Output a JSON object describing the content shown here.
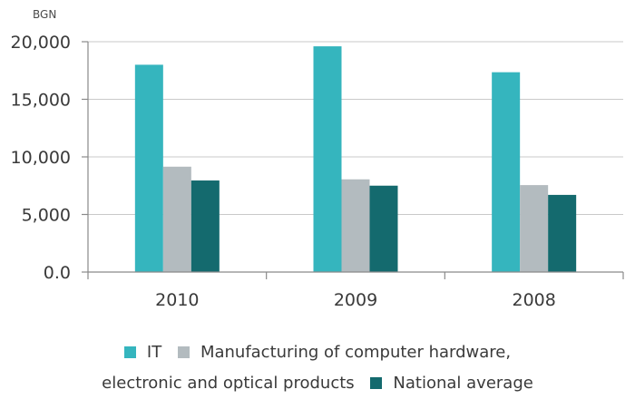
{
  "chart_data": {
    "type": "bar",
    "unit_label": "BGN",
    "categories": [
      "2010",
      "2009",
      "2008"
    ],
    "series": [
      {
        "name": "IT",
        "color": "#35b5be",
        "values": [
          18000,
          19600,
          17350
        ]
      },
      {
        "name": "Manufacturing of computer hardware, electronic and optical products",
        "color": "#b3bbbf",
        "values": [
          9150,
          8050,
          7550
        ]
      },
      {
        "name": "National average",
        "color": "#146a6e",
        "values": [
          7950,
          7500,
          6700
        ]
      }
    ],
    "ylim": [
      0,
      20000
    ],
    "yticks": [
      0,
      5000,
      10000,
      15000,
      20000
    ],
    "ytick_labels": [
      "0.0",
      "5,000",
      "10,000",
      "15,000",
      "20,000"
    ],
    "grid": true,
    "legend_position": "bottom",
    "legend": {
      "line1_item1": "IT",
      "line1_item2": "Manufacturing of computer hardware,",
      "line2_item2": "electronic and optical products",
      "line2_item3": "National average"
    }
  }
}
